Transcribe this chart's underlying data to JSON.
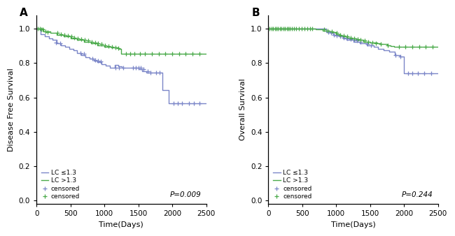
{
  "panel_A": {
    "title": "A",
    "ylabel": "Disease Free Survival",
    "xlabel": "Time(Days)",
    "pvalue": "P=0.009",
    "blue_steps": [
      [
        0,
        1.0
      ],
      [
        60,
        1.0
      ],
      [
        60,
        0.97
      ],
      [
        120,
        0.97
      ],
      [
        120,
        0.955
      ],
      [
        180,
        0.955
      ],
      [
        180,
        0.945
      ],
      [
        240,
        0.945
      ],
      [
        240,
        0.935
      ],
      [
        300,
        0.935
      ],
      [
        300,
        0.915
      ],
      [
        360,
        0.915
      ],
      [
        360,
        0.905
      ],
      [
        420,
        0.905
      ],
      [
        420,
        0.895
      ],
      [
        480,
        0.895
      ],
      [
        480,
        0.885
      ],
      [
        540,
        0.885
      ],
      [
        540,
        0.875
      ],
      [
        600,
        0.875
      ],
      [
        600,
        0.86
      ],
      [
        660,
        0.86
      ],
      [
        660,
        0.845
      ],
      [
        720,
        0.845
      ],
      [
        720,
        0.835
      ],
      [
        780,
        0.835
      ],
      [
        780,
        0.825
      ],
      [
        840,
        0.825
      ],
      [
        840,
        0.815
      ],
      [
        900,
        0.815
      ],
      [
        900,
        0.805
      ],
      [
        960,
        0.805
      ],
      [
        960,
        0.795
      ],
      [
        1020,
        0.795
      ],
      [
        1020,
        0.785
      ],
      [
        1080,
        0.785
      ],
      [
        1080,
        0.775
      ],
      [
        1150,
        0.775
      ],
      [
        1150,
        0.79
      ],
      [
        1200,
        0.79
      ],
      [
        1200,
        0.78
      ],
      [
        1260,
        0.78
      ],
      [
        1260,
        0.775
      ],
      [
        1320,
        0.775
      ],
      [
        1320,
        0.775
      ],
      [
        1380,
        0.775
      ],
      [
        1380,
        0.775
      ],
      [
        1440,
        0.775
      ],
      [
        1440,
        0.775
      ],
      [
        1500,
        0.775
      ],
      [
        1500,
        0.765
      ],
      [
        1560,
        0.765
      ],
      [
        1560,
        0.755
      ],
      [
        1620,
        0.755
      ],
      [
        1620,
        0.745
      ],
      [
        1680,
        0.745
      ],
      [
        1680,
        0.745
      ],
      [
        1740,
        0.745
      ],
      [
        1740,
        0.745
      ],
      [
        1800,
        0.745
      ],
      [
        1800,
        0.745
      ],
      [
        1850,
        0.745
      ],
      [
        1850,
        0.645
      ],
      [
        1900,
        0.645
      ],
      [
        1900,
        0.645
      ],
      [
        1950,
        0.645
      ],
      [
        1950,
        0.565
      ],
      [
        2000,
        0.565
      ],
      [
        2500,
        0.565
      ]
    ],
    "blue_censored": [
      [
        290,
        0.92
      ],
      [
        345,
        0.915
      ],
      [
        650,
        0.86
      ],
      [
        700,
        0.855
      ],
      [
        820,
        0.825
      ],
      [
        865,
        0.82
      ],
      [
        910,
        0.815
      ],
      [
        950,
        0.81
      ],
      [
        1160,
        0.775
      ],
      [
        1220,
        0.775
      ],
      [
        1280,
        0.775
      ],
      [
        1420,
        0.775
      ],
      [
        1460,
        0.775
      ],
      [
        1500,
        0.775
      ],
      [
        1540,
        0.775
      ],
      [
        1580,
        0.765
      ],
      [
        1640,
        0.755
      ],
      [
        1680,
        0.745
      ],
      [
        1760,
        0.745
      ],
      [
        1810,
        0.745
      ],
      [
        2020,
        0.565
      ],
      [
        2080,
        0.565
      ],
      [
        2140,
        0.565
      ],
      [
        2250,
        0.565
      ],
      [
        2320,
        0.565
      ],
      [
        2400,
        0.565
      ]
    ],
    "green_steps": [
      [
        0,
        1.0
      ],
      [
        100,
        1.0
      ],
      [
        100,
        0.985
      ],
      [
        200,
        0.985
      ],
      [
        200,
        0.975
      ],
      [
        300,
        0.975
      ],
      [
        300,
        0.965
      ],
      [
        400,
        0.965
      ],
      [
        400,
        0.955
      ],
      [
        500,
        0.955
      ],
      [
        500,
        0.945
      ],
      [
        600,
        0.945
      ],
      [
        600,
        0.935
      ],
      [
        700,
        0.935
      ],
      [
        700,
        0.925
      ],
      [
        800,
        0.925
      ],
      [
        800,
        0.915
      ],
      [
        900,
        0.915
      ],
      [
        900,
        0.905
      ],
      [
        1000,
        0.905
      ],
      [
        1000,
        0.895
      ],
      [
        1100,
        0.895
      ],
      [
        1100,
        0.89
      ],
      [
        1200,
        0.89
      ],
      [
        1200,
        0.885
      ],
      [
        1250,
        0.885
      ],
      [
        1250,
        0.855
      ],
      [
        1300,
        0.855
      ],
      [
        2500,
        0.855
      ]
    ],
    "green_censored": [
      [
        20,
        1.0
      ],
      [
        45,
        1.0
      ],
      [
        70,
        0.998
      ],
      [
        95,
        0.996
      ],
      [
        130,
        0.985
      ],
      [
        165,
        0.982
      ],
      [
        310,
        0.975
      ],
      [
        360,
        0.97
      ],
      [
        410,
        0.965
      ],
      [
        460,
        0.96
      ],
      [
        510,
        0.955
      ],
      [
        560,
        0.95
      ],
      [
        610,
        0.945
      ],
      [
        660,
        0.94
      ],
      [
        710,
        0.935
      ],
      [
        760,
        0.93
      ],
      [
        810,
        0.925
      ],
      [
        860,
        0.92
      ],
      [
        910,
        0.915
      ],
      [
        960,
        0.91
      ],
      [
        1010,
        0.905
      ],
      [
        1060,
        0.9
      ],
      [
        1110,
        0.895
      ],
      [
        1160,
        0.892
      ],
      [
        1210,
        0.888
      ],
      [
        1320,
        0.855
      ],
      [
        1380,
        0.855
      ],
      [
        1440,
        0.855
      ],
      [
        1520,
        0.855
      ],
      [
        1600,
        0.855
      ],
      [
        1700,
        0.855
      ],
      [
        1800,
        0.855
      ],
      [
        1900,
        0.855
      ],
      [
        2000,
        0.855
      ],
      [
        2100,
        0.855
      ],
      [
        2200,
        0.855
      ],
      [
        2300,
        0.855
      ],
      [
        2400,
        0.855
      ]
    ]
  },
  "panel_B": {
    "title": "B",
    "ylabel": "Overall Survival",
    "xlabel": "Time(Days)",
    "pvalue": "P=0.244",
    "blue_steps": [
      [
        0,
        1.0
      ],
      [
        850,
        1.0
      ],
      [
        850,
        0.98
      ],
      [
        950,
        0.98
      ],
      [
        950,
        0.965
      ],
      [
        1050,
        0.965
      ],
      [
        1050,
        0.955
      ],
      [
        1100,
        0.955
      ],
      [
        1100,
        0.945
      ],
      [
        1150,
        0.945
      ],
      [
        1150,
        0.935
      ],
      [
        1250,
        0.935
      ],
      [
        1250,
        0.925
      ],
      [
        1350,
        0.925
      ],
      [
        1350,
        0.915
      ],
      [
        1450,
        0.915
      ],
      [
        1450,
        0.905
      ],
      [
        1550,
        0.905
      ],
      [
        1550,
        0.895
      ],
      [
        1620,
        0.895
      ],
      [
        1620,
        0.885
      ],
      [
        1700,
        0.885
      ],
      [
        1700,
        0.875
      ],
      [
        1780,
        0.875
      ],
      [
        1780,
        0.865
      ],
      [
        1860,
        0.865
      ],
      [
        1860,
        0.845
      ],
      [
        1940,
        0.845
      ],
      [
        1940,
        0.84
      ],
      [
        2000,
        0.84
      ],
      [
        2000,
        0.74
      ],
      [
        2050,
        0.74
      ],
      [
        2500,
        0.74
      ]
    ],
    "blue_censored": [
      [
        880,
        0.98
      ],
      [
        920,
        0.975
      ],
      [
        970,
        0.965
      ],
      [
        1010,
        0.96
      ],
      [
        1060,
        0.955
      ],
      [
        1110,
        0.95
      ],
      [
        1160,
        0.945
      ],
      [
        1210,
        0.94
      ],
      [
        1260,
        0.935
      ],
      [
        1310,
        0.93
      ],
      [
        1360,
        0.925
      ],
      [
        1460,
        0.91
      ],
      [
        1510,
        0.905
      ],
      [
        1870,
        0.845
      ],
      [
        1950,
        0.84
      ],
      [
        2060,
        0.74
      ],
      [
        2120,
        0.74
      ],
      [
        2200,
        0.74
      ],
      [
        2300,
        0.74
      ],
      [
        2400,
        0.74
      ]
    ],
    "green_steps": [
      [
        0,
        1.0
      ],
      [
        700,
        1.0
      ],
      [
        700,
        0.995
      ],
      [
        800,
        0.995
      ],
      [
        800,
        0.99
      ],
      [
        900,
        0.99
      ],
      [
        900,
        0.98
      ],
      [
        1000,
        0.98
      ],
      [
        1000,
        0.97
      ],
      [
        1050,
        0.97
      ],
      [
        1050,
        0.96
      ],
      [
        1100,
        0.96
      ],
      [
        1100,
        0.955
      ],
      [
        1150,
        0.955
      ],
      [
        1150,
        0.95
      ],
      [
        1200,
        0.95
      ],
      [
        1200,
        0.945
      ],
      [
        1300,
        0.945
      ],
      [
        1300,
        0.935
      ],
      [
        1400,
        0.935
      ],
      [
        1400,
        0.925
      ],
      [
        1500,
        0.925
      ],
      [
        1500,
        0.92
      ],
      [
        1600,
        0.92
      ],
      [
        1600,
        0.915
      ],
      [
        1650,
        0.915
      ],
      [
        1650,
        0.91
      ],
      [
        1750,
        0.91
      ],
      [
        1750,
        0.905
      ],
      [
        1800,
        0.905
      ],
      [
        1800,
        0.9
      ],
      [
        1850,
        0.9
      ],
      [
        1850,
        0.895
      ],
      [
        1900,
        0.895
      ],
      [
        2500,
        0.895
      ]
    ],
    "green_censored": [
      [
        20,
        1.0
      ],
      [
        45,
        1.0
      ],
      [
        70,
        1.0
      ],
      [
        95,
        1.0
      ],
      [
        120,
        1.0
      ],
      [
        145,
        1.0
      ],
      [
        170,
        1.0
      ],
      [
        195,
        1.0
      ],
      [
        220,
        1.0
      ],
      [
        245,
        1.0
      ],
      [
        270,
        1.0
      ],
      [
        295,
        1.0
      ],
      [
        320,
        1.0
      ],
      [
        345,
        1.0
      ],
      [
        380,
        1.0
      ],
      [
        410,
        1.0
      ],
      [
        450,
        1.0
      ],
      [
        490,
        1.0
      ],
      [
        530,
        1.0
      ],
      [
        570,
        1.0
      ],
      [
        610,
        1.0
      ],
      [
        650,
        1.0
      ],
      [
        820,
        0.995
      ],
      [
        870,
        0.99
      ],
      [
        930,
        0.985
      ],
      [
        1010,
        0.975
      ],
      [
        1060,
        0.965
      ],
      [
        1110,
        0.96
      ],
      [
        1160,
        0.955
      ],
      [
        1210,
        0.95
      ],
      [
        1260,
        0.945
      ],
      [
        1320,
        0.94
      ],
      [
        1360,
        0.935
      ],
      [
        1420,
        0.93
      ],
      [
        1470,
        0.925
      ],
      [
        1530,
        0.92
      ],
      [
        1580,
        0.915
      ],
      [
        1660,
        0.91
      ],
      [
        1760,
        0.905
      ],
      [
        1920,
        0.895
      ],
      [
        2020,
        0.895
      ],
      [
        2120,
        0.895
      ],
      [
        2220,
        0.895
      ],
      [
        2320,
        0.895
      ],
      [
        2420,
        0.895
      ]
    ]
  },
  "blue_color": "#7b86c8",
  "green_color": "#4aaa4a",
  "bg_color": "#ffffff",
  "ylim": [
    -0.02,
    1.08
  ],
  "xlim": [
    0,
    2500
  ],
  "yticks": [
    0.0,
    0.2,
    0.4,
    0.6,
    0.8,
    1.0
  ],
  "xticks": [
    0,
    500,
    1000,
    1500,
    2000,
    2500
  ]
}
